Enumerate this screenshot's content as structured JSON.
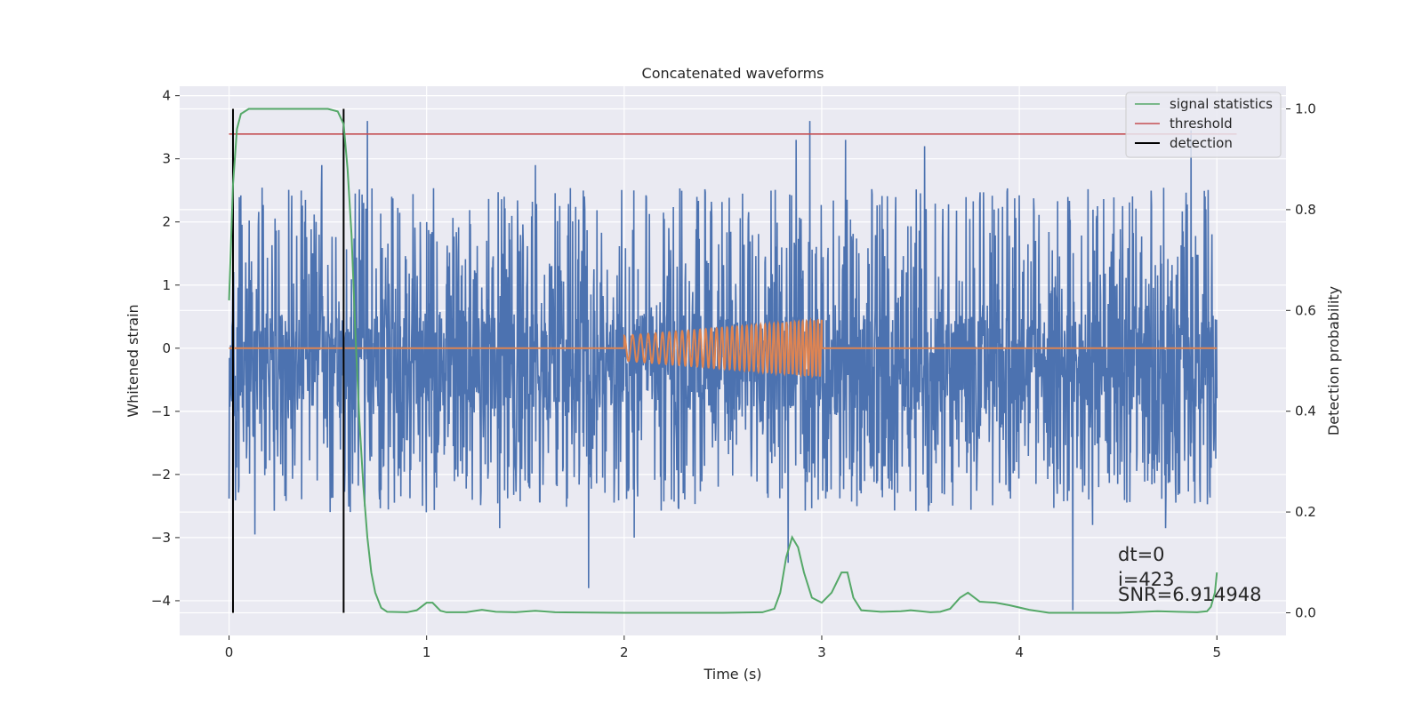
{
  "chart_data": {
    "type": "line",
    "title": "Concatenated waveforms",
    "xlabel": "Time (s)",
    "ylabel": "Whitened strain",
    "y2label": "Detection probability",
    "xlim": [
      -0.25,
      5.35
    ],
    "ylim": [
      -4.55,
      4.15
    ],
    "y2lim": [
      -0.045,
      1.045
    ],
    "xticks": [
      0,
      1,
      2,
      3,
      4,
      5
    ],
    "xtick_labels": [
      "0",
      "1",
      "2",
      "3",
      "4",
      "5"
    ],
    "yticks": [
      -4,
      -3,
      -2,
      -1,
      0,
      1,
      2,
      3,
      4
    ],
    "ytick_labels": [
      "−4",
      "−3",
      "−2",
      "−1",
      "0",
      "1",
      "2",
      "3",
      "4"
    ],
    "y2ticks": [
      0.0,
      0.2,
      0.4,
      0.6,
      0.8,
      1.0
    ],
    "y2tick_labels": [
      "0.0",
      "0.2",
      "0.4",
      "0.6",
      "0.8",
      "1.0"
    ],
    "grid": true,
    "legend_position": "top-right",
    "series": [
      {
        "name": "",
        "kind": "noise",
        "color": "#4c72b0",
        "axis": "left",
        "x_range": [
          0,
          5
        ],
        "typical_range": [
          -1.0,
          0.55
        ],
        "spikes": [
          {
            "x": 0.7,
            "y": 3.6
          },
          {
            "x": 2.94,
            "y": 3.6
          },
          {
            "x": 2.87,
            "y": 3.3
          },
          {
            "x": 3.12,
            "y": 3.3
          },
          {
            "x": 3.52,
            "y": 3.2
          },
          {
            "x": 4.87,
            "y": 3.45
          },
          {
            "x": 0.47,
            "y": 2.9
          },
          {
            "x": 1.55,
            "y": 2.9
          },
          {
            "x": 0.13,
            "y": -2.95
          },
          {
            "x": 1.37,
            "y": -2.85
          },
          {
            "x": 1.82,
            "y": -3.8
          },
          {
            "x": 2.05,
            "y": -3.0
          },
          {
            "x": 2.83,
            "y": -3.4
          },
          {
            "x": 4.27,
            "y": -4.15
          },
          {
            "x": 4.37,
            "y": -2.8
          },
          {
            "x": 4.74,
            "y": -2.85
          }
        ]
      },
      {
        "name": "",
        "kind": "chirp",
        "color": "#dd8452",
        "axis": "left",
        "start": 2.0,
        "end": 3.0,
        "amp_start": 0.2,
        "amp_end": 0.45,
        "cycles": 38
      },
      {
        "name": "signal statistics",
        "color": "#55a868",
        "axis": "right",
        "points": [
          [
            0.0,
            0.62
          ],
          [
            0.02,
            0.85
          ],
          [
            0.04,
            0.96
          ],
          [
            0.06,
            0.99
          ],
          [
            0.1,
            1.0
          ],
          [
            0.3,
            1.0
          ],
          [
            0.5,
            1.0
          ],
          [
            0.55,
            0.995
          ],
          [
            0.58,
            0.97
          ],
          [
            0.6,
            0.88
          ],
          [
            0.62,
            0.75
          ],
          [
            0.64,
            0.55
          ],
          [
            0.66,
            0.38
          ],
          [
            0.68,
            0.25
          ],
          [
            0.7,
            0.15
          ],
          [
            0.72,
            0.08
          ],
          [
            0.74,
            0.04
          ],
          [
            0.77,
            0.01
          ],
          [
            0.8,
            0.002
          ],
          [
            0.9,
            0.001
          ],
          [
            0.95,
            0.005
          ],
          [
            1.0,
            0.02
          ],
          [
            1.03,
            0.02
          ],
          [
            1.07,
            0.004
          ],
          [
            1.1,
            0.001
          ],
          [
            1.2,
            0.001
          ],
          [
            1.28,
            0.006
          ],
          [
            1.35,
            0.002
          ],
          [
            1.45,
            0.001
          ],
          [
            1.55,
            0.004
          ],
          [
            1.65,
            0.001
          ],
          [
            2.0,
            0.0
          ],
          [
            2.5,
            0.0
          ],
          [
            2.7,
            0.001
          ],
          [
            2.76,
            0.008
          ],
          [
            2.79,
            0.04
          ],
          [
            2.82,
            0.11
          ],
          [
            2.85,
            0.15
          ],
          [
            2.88,
            0.13
          ],
          [
            2.91,
            0.08
          ],
          [
            2.95,
            0.03
          ],
          [
            3.0,
            0.02
          ],
          [
            3.05,
            0.04
          ],
          [
            3.1,
            0.08
          ],
          [
            3.13,
            0.08
          ],
          [
            3.16,
            0.03
          ],
          [
            3.2,
            0.005
          ],
          [
            3.3,
            0.002
          ],
          [
            3.4,
            0.003
          ],
          [
            3.45,
            0.005
          ],
          [
            3.55,
            0.001
          ],
          [
            3.6,
            0.002
          ],
          [
            3.65,
            0.008
          ],
          [
            3.7,
            0.03
          ],
          [
            3.74,
            0.04
          ],
          [
            3.8,
            0.022
          ],
          [
            3.88,
            0.02
          ],
          [
            3.95,
            0.015
          ],
          [
            4.05,
            0.006
          ],
          [
            4.15,
            0.0
          ],
          [
            4.5,
            0.0
          ],
          [
            4.7,
            0.003
          ],
          [
            4.8,
            0.002
          ],
          [
            4.9,
            0.001
          ],
          [
            4.95,
            0.003
          ],
          [
            4.97,
            0.012
          ],
          [
            4.99,
            0.04
          ],
          [
            5.0,
            0.08
          ]
        ]
      },
      {
        "name": "threshold",
        "color": "#c44e52",
        "axis": "right",
        "value": 0.95,
        "x_range": [
          0,
          5.1
        ]
      },
      {
        "name": "detection",
        "color": "#000000",
        "axis": "right",
        "x": [
          0.02,
          0.58
        ],
        "range": [
          0.0,
          1.0
        ]
      }
    ],
    "annotations": [
      "dt=0",
      "i=423",
      "SNR=6.914948"
    ]
  }
}
